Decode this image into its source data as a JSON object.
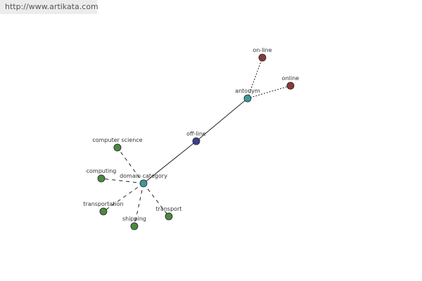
{
  "watermark": "http://www.artikata.com",
  "colors": {
    "center": "#3e9a9a",
    "offline": "#3b3f95",
    "antonym_targets": "#8b3a3a",
    "domain_targets": "#4a8a3e",
    "edge": "#222222"
  },
  "nodes": [
    {
      "id": "domain category",
      "label": "domain category",
      "group": "center"
    },
    {
      "id": "off-line",
      "label": "off-line",
      "group": "offline"
    },
    {
      "id": "antonym",
      "label": "antonym",
      "group": "center"
    },
    {
      "id": "on-line",
      "label": "on-line",
      "group": "antonym_targets"
    },
    {
      "id": "online",
      "label": "online",
      "group": "antonym_targets"
    },
    {
      "id": "computer science",
      "label": "computer science",
      "group": "domain_targets"
    },
    {
      "id": "computing",
      "label": "computing",
      "group": "domain_targets"
    },
    {
      "id": "transportation",
      "label": "transportation",
      "group": "domain_targets"
    },
    {
      "id": "shipping",
      "label": "shipping",
      "group": "domain_targets"
    },
    {
      "id": "transport",
      "label": "transport",
      "group": "domain_targets"
    }
  ],
  "edges": [
    {
      "from": "off-line",
      "to": "domain category",
      "style": "solid"
    },
    {
      "from": "off-line",
      "to": "antonym",
      "style": "solid"
    },
    {
      "from": "antonym",
      "to": "on-line",
      "style": "dotted"
    },
    {
      "from": "antonym",
      "to": "online",
      "style": "dotted"
    },
    {
      "from": "domain category",
      "to": "computer science",
      "style": "dashed"
    },
    {
      "from": "domain category",
      "to": "computing",
      "style": "dashed"
    },
    {
      "from": "domain category",
      "to": "transportation",
      "style": "dashed"
    },
    {
      "from": "domain category",
      "to": "shipping",
      "style": "dashed"
    },
    {
      "from": "domain category",
      "to": "transport",
      "style": "dashed"
    }
  ]
}
